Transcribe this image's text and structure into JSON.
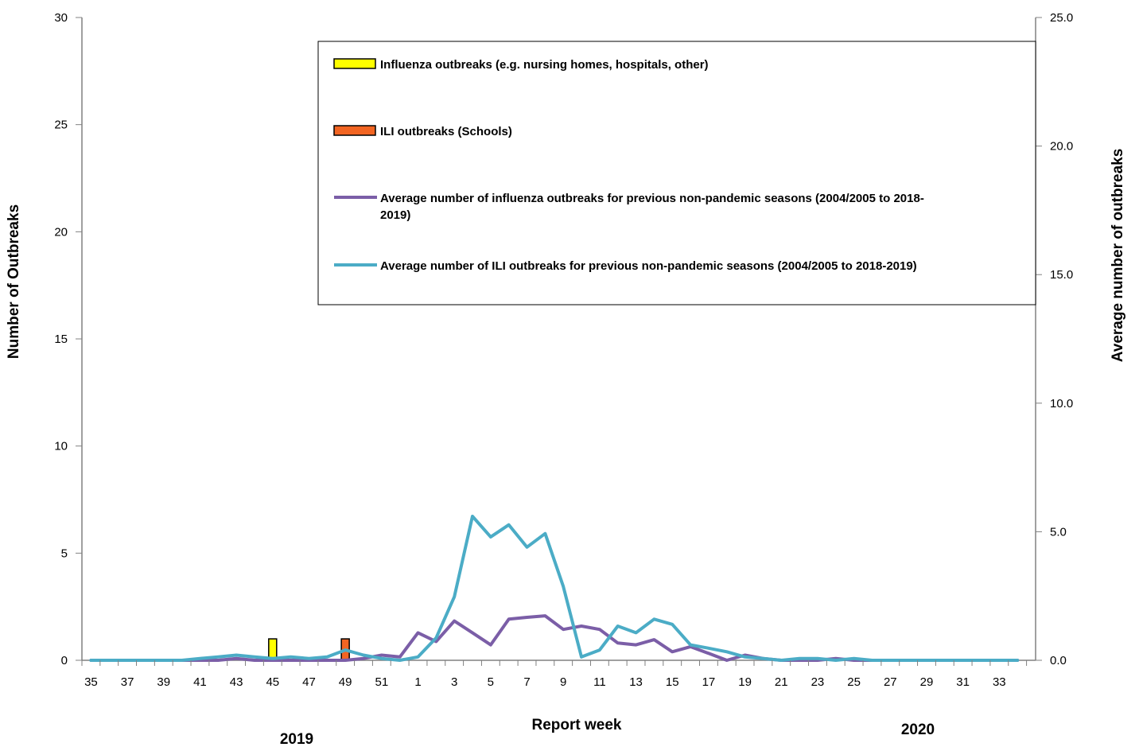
{
  "chart_data": {
    "type": "bar",
    "xlabel": "Report week",
    "ylabel": "Number of Outbreaks",
    "y2label": "Average number of outbreaks",
    "ylim": [
      0,
      30
    ],
    "y2lim": [
      0,
      25
    ],
    "yticks": [
      "0",
      "5",
      "10",
      "15",
      "20",
      "25",
      "30"
    ],
    "y2ticks": [
      "0.0",
      "5.0",
      "10.0",
      "15.0",
      "20.0",
      "25.0"
    ],
    "years": [
      "2019",
      "2020"
    ],
    "x": [
      35,
      36,
      37,
      38,
      39,
      40,
      41,
      42,
      43,
      44,
      45,
      46,
      47,
      48,
      49,
      50,
      51,
      52,
      1,
      2,
      3,
      4,
      5,
      6,
      7,
      8,
      9,
      10,
      11,
      12,
      13,
      14,
      15,
      16,
      17,
      18,
      19,
      20,
      21,
      22,
      23,
      24,
      25,
      26,
      27,
      28,
      29,
      30,
      31,
      32,
      33,
      34
    ],
    "xticks": [
      "35",
      "37",
      "39",
      "41",
      "43",
      "45",
      "47",
      "49",
      "51",
      "1",
      "3",
      "5",
      "7",
      "9",
      "11",
      "13",
      "15",
      "17",
      "19",
      "21",
      "23",
      "25",
      "27",
      "29",
      "31",
      "33"
    ],
    "legend": {
      "placement": "top-right",
      "entries": [
        "Influenza outbreaks (e.g. nursing homes, hospitals, other)",
        "ILI outbreaks (Schools)",
        "Average number of influenza outbreaks for previous non-pandemic seasons (2004/2005 to 2018-2019)",
        "Average number of ILI outbreaks for previous non-pandemic seasons (2004/2005 to 2018-2019)"
      ]
    },
    "series": [
      {
        "name": "Influenza outbreaks (e.g. nursing homes, hospitals, other)",
        "kind": "bar",
        "axis": "left",
        "color": "#ffff00",
        "values": [
          0,
          0,
          0,
          0,
          0,
          0,
          0,
          0,
          0,
          0,
          1,
          0,
          0,
          0,
          0,
          0,
          0,
          0,
          0,
          0,
          0,
          0,
          0,
          0,
          0,
          0,
          0,
          0,
          0,
          0,
          0,
          0,
          0,
          0,
          0,
          0,
          0,
          0,
          0,
          0,
          0,
          0,
          0,
          0,
          0,
          0,
          0,
          0,
          0,
          0,
          0,
          0
        ]
      },
      {
        "name": "ILI outbreaks (Schools)",
        "kind": "bar",
        "axis": "left",
        "color": "#f26522",
        "values": [
          0,
          0,
          0,
          0,
          0,
          0,
          0,
          0,
          0,
          0,
          0,
          0,
          0,
          0,
          1,
          0,
          0,
          0,
          0,
          0,
          0,
          0,
          0,
          0,
          0,
          0,
          0,
          0,
          0,
          0,
          0,
          0,
          0,
          0,
          0,
          0,
          0,
          0,
          0,
          0,
          0,
          0,
          0,
          0,
          0,
          0,
          0,
          0,
          0,
          0,
          0,
          0
        ]
      },
      {
        "name": "Average number of influenza outbreaks for previous non-pandemic seasons (2004/2005 to 2018-2019)",
        "kind": "line",
        "axis": "right",
        "color": "#7b5ea7",
        "values": [
          0,
          0,
          0,
          0,
          0,
          0,
          0,
          0,
          0.07,
          0,
          0,
          0,
          0,
          0,
          0,
          0.07,
          0.2,
          0.13,
          1.07,
          0.73,
          1.53,
          1.07,
          0.6,
          1.6,
          1.67,
          1.73,
          1.2,
          1.33,
          1.2,
          0.67,
          0.6,
          0.8,
          0.33,
          0.53,
          0.27,
          0,
          0.2,
          0.07,
          0,
          0,
          0,
          0.07,
          0,
          0,
          0,
          0,
          0,
          0,
          0,
          0,
          0,
          0
        ]
      },
      {
        "name": "Average number of ILI outbreaks for previous non-pandemic seasons (2004/2005 to 2018-2019)",
        "kind": "line",
        "axis": "right",
        "color": "#4bacc6",
        "values": [
          0,
          0,
          0,
          0,
          0,
          0,
          0.07,
          0.13,
          0.2,
          0.13,
          0.07,
          0.13,
          0.07,
          0.13,
          0.4,
          0.2,
          0.07,
          0,
          0.13,
          0.87,
          2.47,
          5.6,
          4.8,
          5.27,
          4.4,
          4.93,
          2.87,
          0.13,
          0.4,
          1.33,
          1.07,
          1.6,
          1.4,
          0.6,
          0.47,
          0.33,
          0.13,
          0.07,
          0,
          0.07,
          0.07,
          0,
          0.07,
          0,
          0,
          0,
          0,
          0,
          0,
          0,
          0,
          0
        ]
      }
    ]
  }
}
